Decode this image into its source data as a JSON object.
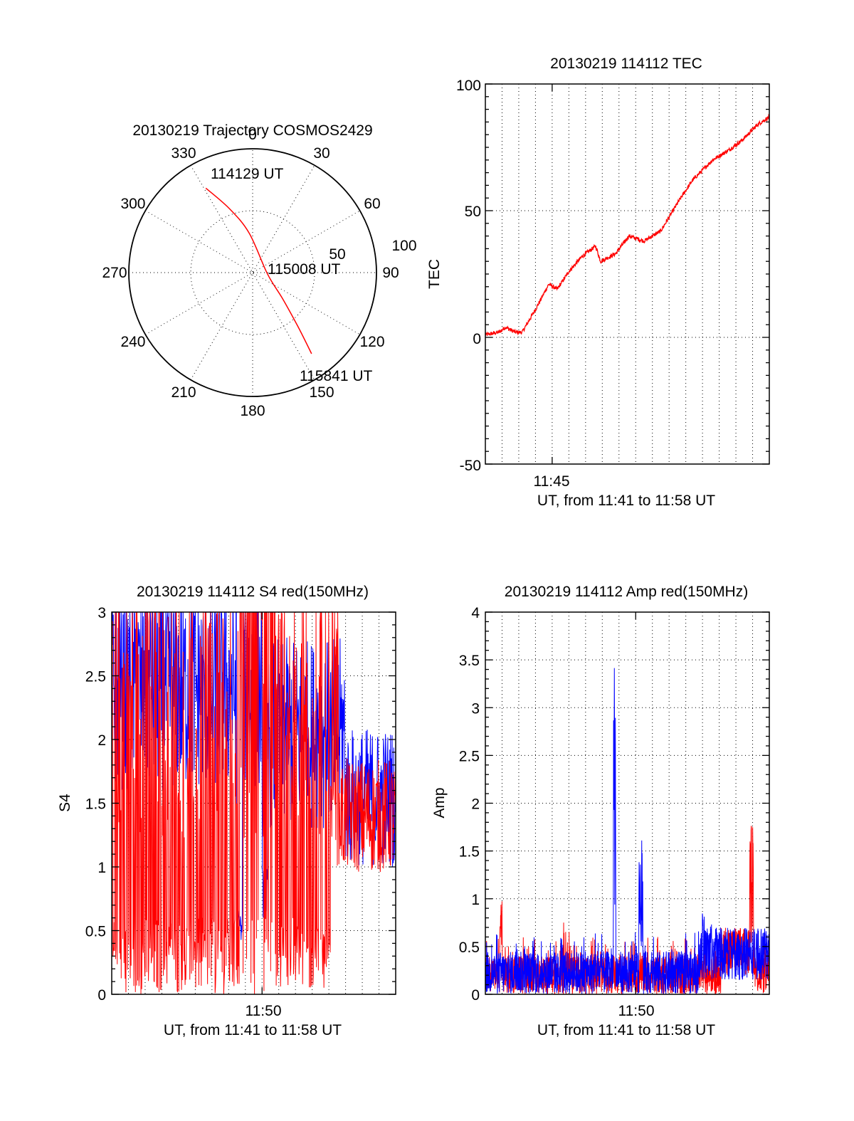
{
  "colors": {
    "red": "#ff0000",
    "blue": "#0000ff",
    "axis": "#000000"
  },
  "chart_data": [
    {
      "id": "polar",
      "type": "scatter",
      "title": "20130219 Trajectory COSMOS2429",
      "angle_labels": [
        "0",
        "30",
        "60",
        "90",
        "120",
        "150",
        "180",
        "210",
        "240",
        "270",
        "300",
        "330"
      ],
      "radial_labels": [
        "50",
        "100"
      ],
      "annotations": [
        "114129 UT",
        "115008 UT",
        "115841 UT"
      ],
      "trajectory": {
        "points": [
          {
            "az": 331,
            "r": 78
          },
          {
            "az": 340,
            "r": 55
          },
          {
            "az": 355,
            "r": 32
          },
          {
            "az": 95,
            "r": 12
          },
          {
            "az": 131,
            "r": 32
          },
          {
            "az": 140,
            "r": 57
          },
          {
            "az": 144,
            "r": 81
          }
        ]
      }
    },
    {
      "id": "tec",
      "type": "line",
      "title": "20130219 114112 TEC",
      "ylabel": "TEC",
      "xlabel": "UT, from 11:41 to 11:58 UT",
      "x_tick_labels": [
        "11:45"
      ],
      "y_tick_labels": [
        "-50",
        "0",
        "50",
        "100"
      ],
      "ylim": [
        -50,
        100
      ],
      "series": [
        {
          "color": "red",
          "points": [
            [
              0,
              1
            ],
            [
              0.8,
              2
            ],
            [
              1.2,
              4
            ],
            [
              1.8,
              2
            ],
            [
              2.2,
              2
            ],
            [
              3,
              11
            ],
            [
              3.8,
              21
            ],
            [
              4.3,
              19
            ],
            [
              5,
              26
            ],
            [
              5.8,
              32
            ],
            [
              6.6,
              36
            ],
            [
              6.9,
              30
            ],
            [
              7.8,
              33
            ],
            [
              8.6,
              40
            ],
            [
              9.5,
              38
            ],
            [
              10.5,
              42
            ],
            [
              11.6,
              54
            ],
            [
              12.4,
              62
            ],
            [
              13.6,
              70
            ],
            [
              14.6,
              74
            ],
            [
              15.4,
              78
            ],
            [
              16.3,
              84
            ],
            [
              17,
              87
            ]
          ]
        }
      ]
    },
    {
      "id": "s4",
      "type": "line",
      "title": "20130219 114112 S4 red(150MHz)",
      "ylabel": "S4",
      "xlabel": "UT, from 11:41 to 11:58 UT",
      "x_tick_labels": [
        "11:50"
      ],
      "y_tick_labels": [
        "0",
        "0.5",
        "1",
        "1.5",
        "2",
        "2.5",
        "3"
      ],
      "ylim": [
        0,
        3
      ]
    },
    {
      "id": "amp",
      "type": "line",
      "title": "20130219 114112 Amp red(150MHz)",
      "ylabel": "Amp",
      "xlabel": "UT, from 11:41 to 11:58 UT",
      "x_tick_labels": [
        "11:50"
      ],
      "y_tick_labels": [
        "0",
        "0.5",
        "1",
        "1.5",
        "2",
        "2.5",
        "3",
        "3.5",
        "4"
      ],
      "ylim": [
        0,
        4
      ]
    }
  ]
}
